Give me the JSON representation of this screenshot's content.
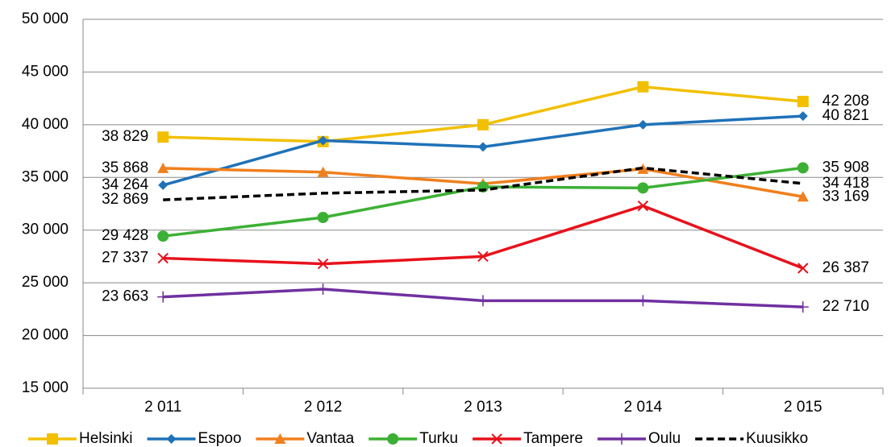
{
  "chart_data": {
    "type": "line",
    "categories": [
      "2 011",
      "2 012",
      "2 013",
      "2 014",
      "2 015"
    ],
    "ylim": [
      15000,
      50000
    ],
    "yticks": [
      {
        "value": 15000,
        "label": "15 000"
      },
      {
        "value": 20000,
        "label": "20 000"
      },
      {
        "value": 25000,
        "label": "25 000"
      },
      {
        "value": 30000,
        "label": "30 000"
      },
      {
        "value": 35000,
        "label": "35 000"
      },
      {
        "value": 40000,
        "label": "40 000"
      },
      {
        "value": 45000,
        "label": "45 000"
      },
      {
        "value": 50000,
        "label": "50 000"
      }
    ],
    "grid": true,
    "legend": "bottom",
    "series": [
      {
        "name": "Helsinki",
        "color": "#f2c000",
        "marker": "square",
        "values": [
          38829,
          38400,
          40000,
          43600,
          42208
        ],
        "value_labels": [
          "38 829",
          null,
          null,
          null,
          "42 208"
        ]
      },
      {
        "name": "Espoo",
        "color": "#1f72b8",
        "marker": "diamond",
        "values": [
          34264,
          38500,
          37900,
          40000,
          40821
        ],
        "value_labels": [
          "34 264",
          null,
          null,
          null,
          "40 821"
        ]
      },
      {
        "name": "Vantaa",
        "color": "#f07f1d",
        "marker": "triangle",
        "values": [
          35868,
          35500,
          34400,
          35800,
          33169
        ],
        "value_labels": [
          "35 868",
          null,
          null,
          null,
          "33 169"
        ]
      },
      {
        "name": "Turku",
        "color": "#3cb034",
        "marker": "circle",
        "values": [
          29428,
          31200,
          34100,
          34000,
          35908
        ],
        "value_labels": [
          "29 428",
          null,
          null,
          null,
          "35 908"
        ]
      },
      {
        "name": "Tampere",
        "color": "#e8111b",
        "marker": "x",
        "values": [
          27337,
          26800,
          27500,
          32300,
          26387
        ],
        "value_labels": [
          "27 337",
          null,
          null,
          null,
          "26 387"
        ]
      },
      {
        "name": "Oulu",
        "color": "#7030a0",
        "marker": "plus",
        "values": [
          23663,
          24400,
          23300,
          23300,
          22710
        ],
        "value_labels": [
          "23 663",
          null,
          null,
          null,
          "22 710"
        ]
      },
      {
        "name": "Kuusikko",
        "color": "#000000",
        "marker": "none",
        "dash": true,
        "values": [
          32869,
          33500,
          33800,
          35900,
          34418
        ],
        "value_labels": [
          "32 869",
          null,
          null,
          null,
          "34 418"
        ]
      }
    ]
  }
}
